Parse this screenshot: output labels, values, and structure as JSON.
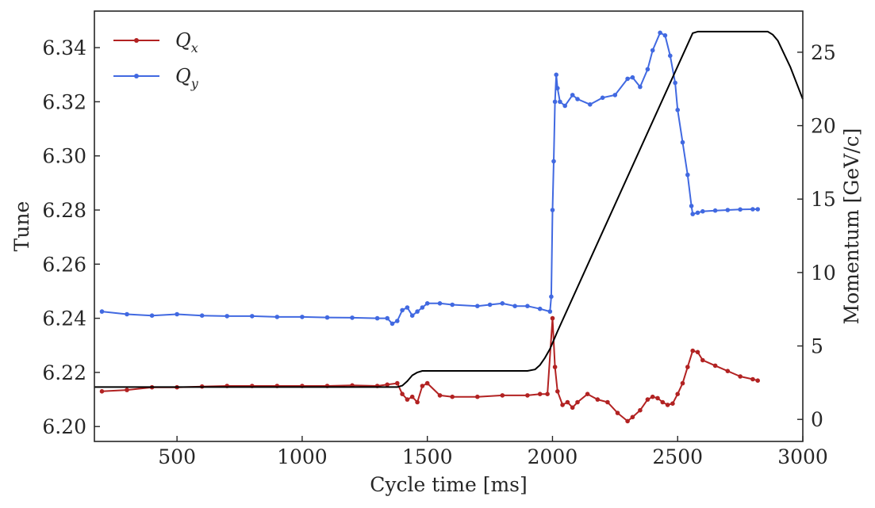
{
  "chart_data": {
    "type": "line",
    "xlabel": "Cycle time [ms]",
    "ylabel": "Tune",
    "y2label": "Momentum [GeV/c]",
    "xlim": [
      170,
      3000
    ],
    "ylim": [
      6.1945,
      6.3535
    ],
    "y2lim": [
      -1.5,
      27.8
    ],
    "x_ticks": [
      "500",
      "1000",
      "1500",
      "2000",
      "2500",
      "3000"
    ],
    "y_ticks": [
      "6.20",
      "6.22",
      "6.24",
      "6.26",
      "6.28",
      "6.30",
      "6.32",
      "6.34"
    ],
    "y2_ticks": [
      "0",
      "5",
      "10",
      "15",
      "20",
      "25"
    ],
    "grid": false,
    "legend_position": "top-left",
    "series": [
      {
        "name": "Q",
        "name_sub": "x",
        "axis": "left",
        "color": "#b22222",
        "x": [
          200,
          300,
          400,
          500,
          600,
          700,
          800,
          900,
          1000,
          1100,
          1200,
          1300,
          1340,
          1380,
          1400,
          1420,
          1440,
          1460,
          1480,
          1500,
          1550,
          1600,
          1700,
          1800,
          1900,
          1950,
          1980,
          2000,
          2010,
          2020,
          2040,
          2060,
          2080,
          2100,
          2140,
          2180,
          2220,
          2260,
          2300,
          2320,
          2350,
          2380,
          2400,
          2420,
          2440,
          2460,
          2480,
          2500,
          2520,
          2540,
          2560,
          2580,
          2600,
          2650,
          2700,
          2750,
          2800,
          2820
        ],
        "y": [
          6.213,
          6.2135,
          6.2145,
          6.2145,
          6.2148,
          6.215,
          6.215,
          6.215,
          6.215,
          6.215,
          6.2152,
          6.215,
          6.2155,
          6.216,
          6.212,
          6.21,
          6.211,
          6.209,
          6.215,
          6.216,
          6.2115,
          6.211,
          6.211,
          6.2115,
          6.2115,
          6.212,
          6.212,
          6.24,
          6.222,
          6.213,
          6.208,
          6.209,
          6.207,
          6.209,
          6.212,
          6.21,
          6.209,
          6.205,
          6.202,
          6.2035,
          6.206,
          6.21,
          6.211,
          6.2105,
          6.209,
          6.208,
          6.2085,
          6.212,
          6.216,
          6.222,
          6.228,
          6.2275,
          6.2245,
          6.2225,
          6.2205,
          6.2185,
          6.2175,
          6.217
        ]
      },
      {
        "name": "Q",
        "name_sub": "y",
        "axis": "left",
        "color": "#4169e1",
        "x": [
          200,
          300,
          400,
          500,
          600,
          700,
          800,
          900,
          1000,
          1100,
          1200,
          1300,
          1340,
          1360,
          1380,
          1400,
          1420,
          1440,
          1460,
          1480,
          1500,
          1550,
          1600,
          1700,
          1750,
          1800,
          1850,
          1900,
          1950,
          1990,
          1995,
          2000,
          2005,
          2010,
          2015,
          2020,
          2030,
          2050,
          2080,
          2100,
          2150,
          2200,
          2250,
          2300,
          2320,
          2350,
          2380,
          2400,
          2430,
          2450,
          2470,
          2490,
          2500,
          2520,
          2540,
          2555,
          2560,
          2580,
          2600,
          2650,
          2700,
          2750,
          2800,
          2820
        ],
        "y": [
          6.2425,
          6.2415,
          6.241,
          6.2415,
          6.241,
          6.2408,
          6.2408,
          6.2405,
          6.2405,
          6.2403,
          6.2402,
          6.24,
          6.24,
          6.238,
          6.239,
          6.243,
          6.244,
          6.241,
          6.2425,
          6.244,
          6.2455,
          6.2455,
          6.245,
          6.2445,
          6.245,
          6.2455,
          6.2445,
          6.2445,
          6.2435,
          6.2425,
          6.248,
          6.28,
          6.298,
          6.32,
          6.33,
          6.325,
          6.32,
          6.3185,
          6.3225,
          6.321,
          6.319,
          6.3215,
          6.3225,
          6.3285,
          6.329,
          6.3255,
          6.332,
          6.339,
          6.3455,
          6.3445,
          6.337,
          6.327,
          6.317,
          6.305,
          6.293,
          6.2815,
          6.2785,
          6.279,
          6.2795,
          6.2798,
          6.28,
          6.2802,
          6.2803,
          6.2803
        ]
      },
      {
        "name": "",
        "axis": "right",
        "color": "#000000",
        "x": [
          170,
          1380,
          1400,
          1420,
          1440,
          1460,
          1480,
          1900,
          1930,
          1950,
          1970,
          1990,
          2000,
          2020,
          2560,
          2580,
          2860,
          2880,
          2900,
          2950,
          3000
        ],
        "y": [
          2.2,
          2.2,
          2.3,
          2.6,
          3.0,
          3.2,
          3.3,
          3.3,
          3.4,
          3.7,
          4.2,
          4.8,
          5.2,
          6.0,
          26.3,
          26.4,
          26.4,
          26.2,
          25.8,
          24.0,
          21.8
        ]
      }
    ]
  }
}
